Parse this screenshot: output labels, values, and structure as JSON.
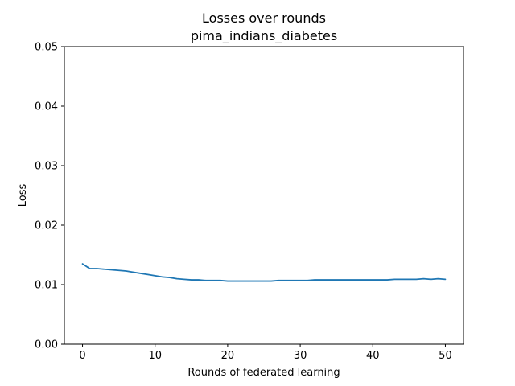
{
  "chart_data": {
    "type": "line",
    "title": "Losses over rounds",
    "subtitle": "pima_indians_diabetes",
    "xlabel": "Rounds of federated learning",
    "ylabel": "Loss",
    "xlim": [
      -2.5,
      52.5
    ],
    "ylim": [
      0,
      0.05
    ],
    "xticks": [
      0,
      10,
      20,
      30,
      40,
      50
    ],
    "xtick_labels": [
      "0",
      "10",
      "20",
      "30",
      "40",
      "50"
    ],
    "yticks": [
      0,
      0.01,
      0.02,
      0.03,
      0.04,
      0.05
    ],
    "ytick_labels": [
      "0.00",
      "0.01",
      "0.02",
      "0.03",
      "0.04",
      "0.05"
    ],
    "grid": false,
    "series": [
      {
        "color": "#1f77b4",
        "x": [
          0,
          1,
          2,
          3,
          4,
          5,
          6,
          7,
          8,
          9,
          10,
          11,
          12,
          13,
          14,
          15,
          16,
          17,
          18,
          19,
          20,
          21,
          22,
          23,
          24,
          25,
          26,
          27,
          28,
          29,
          30,
          31,
          32,
          33,
          34,
          35,
          36,
          37,
          38,
          39,
          40,
          41,
          42,
          43,
          44,
          45,
          46,
          47,
          48,
          49,
          50
        ],
        "y": [
          0.0135,
          0.0127,
          0.0127,
          0.0126,
          0.0125,
          0.0124,
          0.0123,
          0.0121,
          0.0119,
          0.0117,
          0.0115,
          0.0113,
          0.0112,
          0.011,
          0.0109,
          0.0108,
          0.0108,
          0.0107,
          0.0107,
          0.0107,
          0.0106,
          0.0106,
          0.0106,
          0.0106,
          0.0106,
          0.0106,
          0.0106,
          0.0107,
          0.0107,
          0.0107,
          0.0107,
          0.0107,
          0.0108,
          0.0108,
          0.0108,
          0.0108,
          0.0108,
          0.0108,
          0.0108,
          0.0108,
          0.0108,
          0.0108,
          0.0108,
          0.0109,
          0.0109,
          0.0109,
          0.0109,
          0.011,
          0.0109,
          0.011,
          0.0109
        ]
      }
    ]
  }
}
